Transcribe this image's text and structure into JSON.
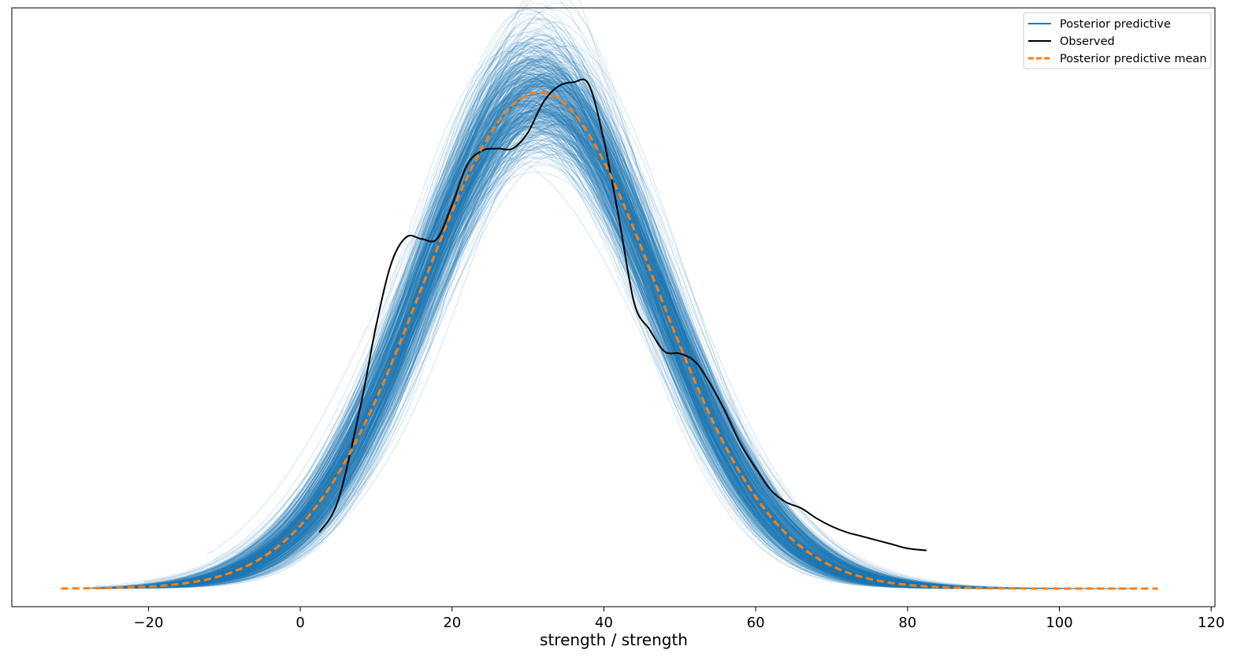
{
  "chart_data": {
    "type": "line",
    "title": "",
    "xlabel": "strength / strength",
    "ylabel": "",
    "xlim": [
      -38,
      120.5
    ],
    "ylim": [
      -0.0009,
      0.0289
    ],
    "xticks": [
      -20,
      0,
      20,
      40,
      60,
      80,
      100,
      120
    ],
    "xtick_labels": [
      "−20",
      "0",
      "20",
      "40",
      "60",
      "80",
      "100",
      "120"
    ],
    "yticks_visible": false,
    "grid": false,
    "legend": {
      "placement": "top-right",
      "entries": [
        {
          "label": "Posterior predictive",
          "color": "#1f77b4",
          "style": "solid"
        },
        {
          "label": "Observed",
          "color": "#000000",
          "style": "solid"
        },
        {
          "label": "Posterior predictive mean",
          "color": "#ff7f0e",
          "style": "dashed"
        }
      ]
    },
    "series": [
      {
        "name": "Posterior predictive",
        "color": "#1f77b4",
        "n_draws": 500,
        "draw_alpha": 0.2,
        "center_mean": 31.5,
        "center_sd": 20.6,
        "x_range": [
          -28,
          110
        ],
        "mean_jitter": 1.4,
        "sd_jitter": 0.8
      },
      {
        "name": "Observed",
        "color": "#000000",
        "x": [
          2.5,
          5,
          8,
          10,
          12,
          14,
          16,
          18,
          20,
          22,
          24,
          26,
          28,
          30,
          32,
          34,
          36,
          38,
          40,
          42,
          44,
          46,
          48,
          50,
          52,
          54,
          56,
          58,
          60,
          62,
          64,
          66,
          68,
          70,
          72,
          74,
          76,
          78,
          80,
          82.5
        ],
        "y": [
          0.0028,
          0.0044,
          0.0092,
          0.0131,
          0.0162,
          0.0175,
          0.0174,
          0.0174,
          0.0191,
          0.0211,
          0.0218,
          0.0219,
          0.0219,
          0.0227,
          0.0242,
          0.025,
          0.0252,
          0.0251,
          0.0223,
          0.0184,
          0.0142,
          0.0129,
          0.0118,
          0.0117,
          0.0113,
          0.0102,
          0.0088,
          0.0072,
          0.006,
          0.0049,
          0.0043,
          0.004,
          0.0035,
          0.0031,
          0.0028,
          0.0026,
          0.0024,
          0.0022,
          0.002,
          0.0019
        ]
      },
      {
        "name": "Posterior predictive mean",
        "color": "#ff7f0e",
        "style": "dashed",
        "distribution": "normal",
        "mean": 31.5,
        "sd": 15.5,
        "peak": 0.0247,
        "x_range": [
          -31.5,
          113
        ]
      }
    ]
  }
}
